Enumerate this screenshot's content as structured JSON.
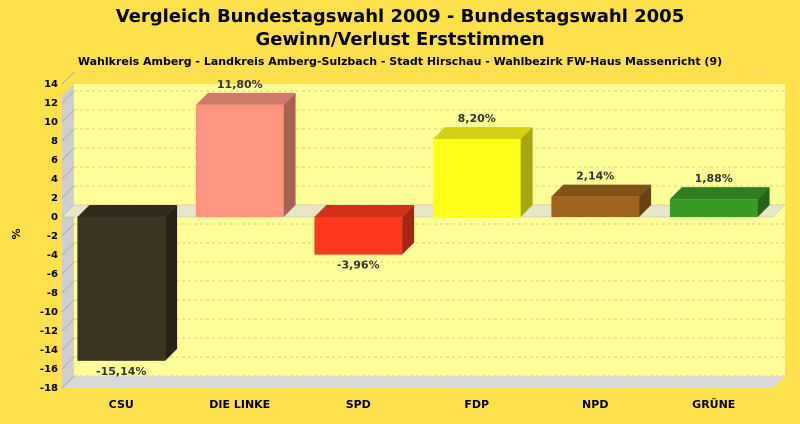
{
  "chart_data": {
    "type": "bar",
    "title": "Vergleich Bundestagswahl 2009 - Bundestagswahl 2005",
    "subtitle": "Gewinn/Verlust Erststimmen",
    "subsubtitle": "Wahlkreis Amberg - Landkreis Amberg-Sulzbach - Stadt Hirschau - Wahlbezirk FW-Haus Massenricht (9)",
    "xlabel": "",
    "ylabel": "%",
    "ylim": [
      -18,
      14
    ],
    "yticks": [
      14,
      12,
      10,
      8,
      6,
      4,
      2,
      0,
      -2,
      -4,
      -6,
      -8,
      -10,
      -12,
      -14,
      -16,
      -18
    ],
    "grid": true,
    "categories": [
      "CSU",
      "DIE LINKE",
      "SPD",
      "FDP",
      "NPD",
      "GRÜNE"
    ],
    "values": [
      -15.14,
      11.8,
      -3.96,
      8.2,
      2.14,
      1.88
    ],
    "value_labels": [
      "-15,14%",
      "11,80%",
      "-3,96%",
      "8,20%",
      "2,14%",
      "1,88%"
    ],
    "colors": [
      "#3b3420",
      "#ff9580",
      "#ff3a1f",
      "#ffff1a",
      "#a0641f",
      "#3a9a26"
    ],
    "background_color": "#ffe14d",
    "plot_color": "#ffff9a"
  }
}
